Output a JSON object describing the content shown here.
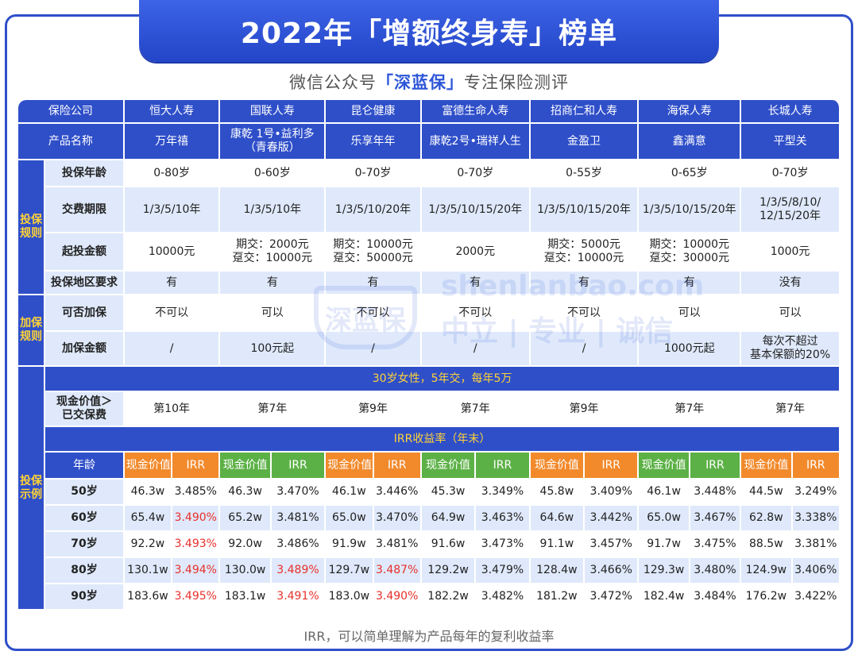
{
  "title": "2022年「增额终身寿」榜单",
  "subtitle": {
    "prefix": "微信公众号",
    "brand": "「深蓝保」",
    "suffix": "专注保险测评"
  },
  "watermark": {
    "logo": "深蓝保",
    "url": "shenlanbao.com",
    "motto": "中立 | 专业 | 诚信"
  },
  "colors": {
    "primary": "#2f4fc9",
    "light_blue": "#dfe9fb",
    "yellow": "#ffd336",
    "orange": "#f28a2c",
    "green": "#5cb146",
    "red": "#e8302a"
  },
  "header": {
    "company_label": "保险公司",
    "product_label": "产品名称",
    "companies": [
      "恒大人寿",
      "国联人寿",
      "昆仑健康",
      "富德生命人寿",
      "招商仁和人寿",
      "海保人寿",
      "长城人寿"
    ],
    "products": [
      "万年禧",
      "康乾 1号•益利多\n（青春版）",
      "乐享年年",
      "康乾2号•瑞祥人生",
      "金盈卫",
      "鑫满意",
      "平型关"
    ]
  },
  "sections": {
    "rules": "投保\n规则",
    "add": "加保\n规则",
    "example": "投保\n示例"
  },
  "rules": [
    {
      "label": "投保年龄",
      "values": [
        "0-80岁",
        "0-60岁",
        "0-70岁",
        "0-70岁",
        "0-55岁",
        "0-65岁",
        "0-70岁"
      ]
    },
    {
      "label": "交费期限",
      "values": [
        "1/3/5/10年",
        "1/3/5/10年",
        "1/3/5/10/20年",
        "1/3/5/10/15/20年",
        "1/3/5/10/15/20年",
        "1/3/5/10/15/20年",
        "1/3/5/8/10/\n12/15/20年"
      ]
    },
    {
      "label": "起投金额",
      "values": [
        "10000元",
        "期交：2000元\n趸交：10000元",
        "期交：10000元\n趸交：50000元",
        "2000元",
        "期交：5000元\n趸交：10000元",
        "期交：10000元\n趸交：30000元",
        "1000元"
      ]
    },
    {
      "label": "投保地区要求",
      "values": [
        "有",
        "有",
        "有",
        "有",
        "有",
        "有",
        "没有"
      ]
    }
  ],
  "add_rules": [
    {
      "label": "可否加保",
      "values": [
        "不可以",
        "可以",
        "不可以",
        "不可以",
        "不可以",
        "可以",
        "可以"
      ]
    },
    {
      "label": "加保金额",
      "values": [
        "/",
        "100元起",
        "/",
        "/",
        "/",
        "1000元起",
        "每次不超过\n基本保额的20%"
      ]
    }
  ],
  "example": {
    "band": "30岁女性，5年交，每年5万",
    "breakeven_label": "现金价值＞\n已交保费",
    "breakeven": [
      "第10年",
      "第7年",
      "第9年",
      "第7年",
      "第9年",
      "第7年",
      "第7年"
    ],
    "irr_band": "IRR收益率（年末）",
    "age_label": "年龄",
    "cash_label": "现金价值",
    "irr_label": "IRR",
    "rows": [
      {
        "age": "50岁",
        "cells": [
          [
            "46.3w",
            "3.485%"
          ],
          [
            "46.3w",
            "3.470%"
          ],
          [
            "46.1w",
            "3.446%"
          ],
          [
            "45.3w",
            "3.349%"
          ],
          [
            "45.8w",
            "3.409%"
          ],
          [
            "46.1w",
            "3.448%"
          ],
          [
            "44.5w",
            "3.249%"
          ]
        ]
      },
      {
        "age": "60岁",
        "cells": [
          [
            "65.4w",
            "3.490%"
          ],
          [
            "65.2w",
            "3.481%"
          ],
          [
            "65.0w",
            "3.470%"
          ],
          [
            "64.9w",
            "3.463%"
          ],
          [
            "64.6w",
            "3.442%"
          ],
          [
            "65.0w",
            "3.467%"
          ],
          [
            "62.8w",
            "3.338%"
          ]
        ]
      },
      {
        "age": "70岁",
        "cells": [
          [
            "92.2w",
            "3.493%"
          ],
          [
            "92.0w",
            "3.486%"
          ],
          [
            "91.9w",
            "3.481%"
          ],
          [
            "91.6w",
            "3.473%"
          ],
          [
            "91.1w",
            "3.457%"
          ],
          [
            "91.7w",
            "3.475%"
          ],
          [
            "88.5w",
            "3.381%"
          ]
        ]
      },
      {
        "age": "80岁",
        "cells": [
          [
            "130.1w",
            "3.494%"
          ],
          [
            "130.0w",
            "3.489%"
          ],
          [
            "129.7w",
            "3.487%"
          ],
          [
            "129.2w",
            "3.479%"
          ],
          [
            "128.4w",
            "3.466%"
          ],
          [
            "129.3w",
            "3.480%"
          ],
          [
            "124.9w",
            "3.406%"
          ]
        ]
      },
      {
        "age": "90岁",
        "cells": [
          [
            "183.6w",
            "3.495%"
          ],
          [
            "183.1w",
            "3.491%"
          ],
          [
            "183.0w",
            "3.490%"
          ],
          [
            "182.2w",
            "3.482%"
          ],
          [
            "181.2w",
            "3.472%"
          ],
          [
            "182.4w",
            "3.484%"
          ],
          [
            "176.2w",
            "3.422%"
          ]
        ]
      }
    ],
    "highlight_red": [
      [
        0,
        60
      ],
      [
        0,
        70
      ],
      [
        0,
        80
      ],
      [
        0,
        90
      ],
      [
        1,
        80
      ],
      [
        1,
        90
      ],
      [
        2,
        80
      ],
      [
        2,
        90
      ]
    ]
  },
  "footer_note": "IRR，可以简单理解为产品每年的复利收益率"
}
